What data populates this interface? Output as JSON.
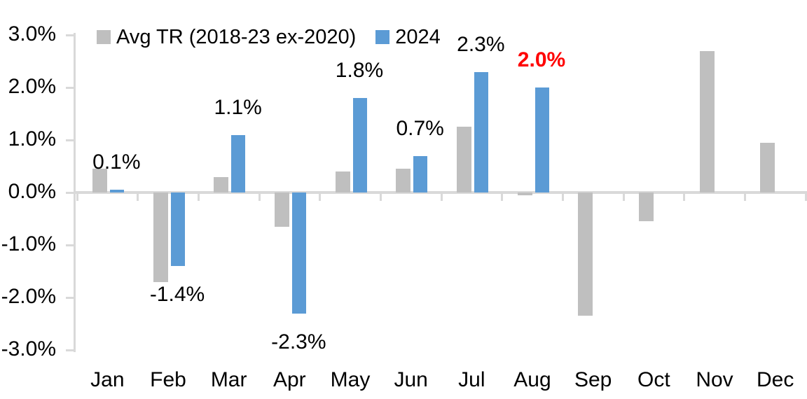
{
  "chart_data": {
    "type": "bar",
    "title": "",
    "xlabel": "",
    "ylabel": "",
    "categories": [
      "Jan",
      "Feb",
      "Mar",
      "Apr",
      "May",
      "Jun",
      "Jul",
      "Aug",
      "Sep",
      "Oct",
      "Nov",
      "Dec"
    ],
    "series": [
      {
        "name": "Avg TR (2018-23 ex-2020)",
        "color": "#BFBFBF",
        "values": [
          0.45,
          -1.7,
          0.3,
          -0.65,
          0.4,
          0.45,
          1.25,
          -0.05,
          -2.35,
          -0.55,
          2.7,
          0.95
        ]
      },
      {
        "name": "2024",
        "color": "#5B9BD5",
        "values": [
          0.05,
          -1.4,
          1.1,
          -2.3,
          1.8,
          0.7,
          2.3,
          2.0,
          null,
          null,
          null,
          null
        ]
      }
    ],
    "data_labels": [
      {
        "category": "Jan",
        "text": "0.1%",
        "emphasis": false
      },
      {
        "category": "Feb",
        "text": "-1.4%",
        "emphasis": false
      },
      {
        "category": "Mar",
        "text": "1.1%",
        "emphasis": false
      },
      {
        "category": "Apr",
        "text": "-2.3%",
        "emphasis": false
      },
      {
        "category": "May",
        "text": "1.8%",
        "emphasis": false
      },
      {
        "category": "Jun",
        "text": "0.7%",
        "emphasis": false
      },
      {
        "category": "Jul",
        "text": "2.3%",
        "emphasis": false
      },
      {
        "category": "Aug",
        "text": "2.0%",
        "emphasis": true
      }
    ],
    "y_axis": {
      "tick_labels": [
        "3.0%",
        "2.0%",
        "1.0%",
        "0.0%",
        "-1.0%",
        "-2.0%",
        "-3.0%"
      ],
      "min": -3,
      "max": 3,
      "step": 1
    },
    "legend_position": "top",
    "grid": false,
    "colors": {
      "axis": "#D9D9D9",
      "text": "#000000",
      "emphasis": "#FF0000",
      "background": "#FFFFFF"
    }
  }
}
